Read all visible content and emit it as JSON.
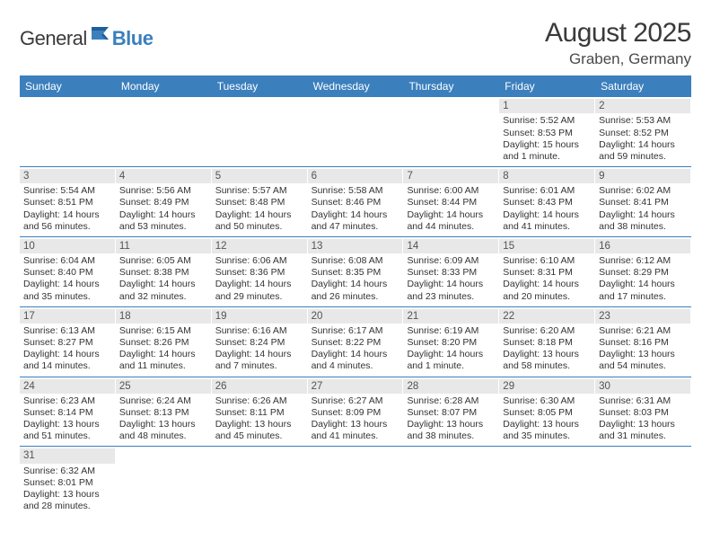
{
  "brand": {
    "name_part1": "General",
    "name_part2": "Blue"
  },
  "header": {
    "month_title": "August 2025",
    "location": "Graben, Germany"
  },
  "colors": {
    "header_bg": "#3b7fbd",
    "daynum_bg": "#e8e8e8",
    "row_border": "#3b7fbd",
    "text": "#333333",
    "white": "#ffffff"
  },
  "day_names": [
    "Sunday",
    "Monday",
    "Tuesday",
    "Wednesday",
    "Thursday",
    "Friday",
    "Saturday"
  ],
  "weeks": [
    [
      {
        "day": "",
        "sunrise": "",
        "sunset": "",
        "daylight": ""
      },
      {
        "day": "",
        "sunrise": "",
        "sunset": "",
        "daylight": ""
      },
      {
        "day": "",
        "sunrise": "",
        "sunset": "",
        "daylight": ""
      },
      {
        "day": "",
        "sunrise": "",
        "sunset": "",
        "daylight": ""
      },
      {
        "day": "",
        "sunrise": "",
        "sunset": "",
        "daylight": ""
      },
      {
        "day": "1",
        "sunrise": "Sunrise: 5:52 AM",
        "sunset": "Sunset: 8:53 PM",
        "daylight": "Daylight: 15 hours and 1 minute."
      },
      {
        "day": "2",
        "sunrise": "Sunrise: 5:53 AM",
        "sunset": "Sunset: 8:52 PM",
        "daylight": "Daylight: 14 hours and 59 minutes."
      }
    ],
    [
      {
        "day": "3",
        "sunrise": "Sunrise: 5:54 AM",
        "sunset": "Sunset: 8:51 PM",
        "daylight": "Daylight: 14 hours and 56 minutes."
      },
      {
        "day": "4",
        "sunrise": "Sunrise: 5:56 AM",
        "sunset": "Sunset: 8:49 PM",
        "daylight": "Daylight: 14 hours and 53 minutes."
      },
      {
        "day": "5",
        "sunrise": "Sunrise: 5:57 AM",
        "sunset": "Sunset: 8:48 PM",
        "daylight": "Daylight: 14 hours and 50 minutes."
      },
      {
        "day": "6",
        "sunrise": "Sunrise: 5:58 AM",
        "sunset": "Sunset: 8:46 PM",
        "daylight": "Daylight: 14 hours and 47 minutes."
      },
      {
        "day": "7",
        "sunrise": "Sunrise: 6:00 AM",
        "sunset": "Sunset: 8:44 PM",
        "daylight": "Daylight: 14 hours and 44 minutes."
      },
      {
        "day": "8",
        "sunrise": "Sunrise: 6:01 AM",
        "sunset": "Sunset: 8:43 PM",
        "daylight": "Daylight: 14 hours and 41 minutes."
      },
      {
        "day": "9",
        "sunrise": "Sunrise: 6:02 AM",
        "sunset": "Sunset: 8:41 PM",
        "daylight": "Daylight: 14 hours and 38 minutes."
      }
    ],
    [
      {
        "day": "10",
        "sunrise": "Sunrise: 6:04 AM",
        "sunset": "Sunset: 8:40 PM",
        "daylight": "Daylight: 14 hours and 35 minutes."
      },
      {
        "day": "11",
        "sunrise": "Sunrise: 6:05 AM",
        "sunset": "Sunset: 8:38 PM",
        "daylight": "Daylight: 14 hours and 32 minutes."
      },
      {
        "day": "12",
        "sunrise": "Sunrise: 6:06 AM",
        "sunset": "Sunset: 8:36 PM",
        "daylight": "Daylight: 14 hours and 29 minutes."
      },
      {
        "day": "13",
        "sunrise": "Sunrise: 6:08 AM",
        "sunset": "Sunset: 8:35 PM",
        "daylight": "Daylight: 14 hours and 26 minutes."
      },
      {
        "day": "14",
        "sunrise": "Sunrise: 6:09 AM",
        "sunset": "Sunset: 8:33 PM",
        "daylight": "Daylight: 14 hours and 23 minutes."
      },
      {
        "day": "15",
        "sunrise": "Sunrise: 6:10 AM",
        "sunset": "Sunset: 8:31 PM",
        "daylight": "Daylight: 14 hours and 20 minutes."
      },
      {
        "day": "16",
        "sunrise": "Sunrise: 6:12 AM",
        "sunset": "Sunset: 8:29 PM",
        "daylight": "Daylight: 14 hours and 17 minutes."
      }
    ],
    [
      {
        "day": "17",
        "sunrise": "Sunrise: 6:13 AM",
        "sunset": "Sunset: 8:27 PM",
        "daylight": "Daylight: 14 hours and 14 minutes."
      },
      {
        "day": "18",
        "sunrise": "Sunrise: 6:15 AM",
        "sunset": "Sunset: 8:26 PM",
        "daylight": "Daylight: 14 hours and 11 minutes."
      },
      {
        "day": "19",
        "sunrise": "Sunrise: 6:16 AM",
        "sunset": "Sunset: 8:24 PM",
        "daylight": "Daylight: 14 hours and 7 minutes."
      },
      {
        "day": "20",
        "sunrise": "Sunrise: 6:17 AM",
        "sunset": "Sunset: 8:22 PM",
        "daylight": "Daylight: 14 hours and 4 minutes."
      },
      {
        "day": "21",
        "sunrise": "Sunrise: 6:19 AM",
        "sunset": "Sunset: 8:20 PM",
        "daylight": "Daylight: 14 hours and 1 minute."
      },
      {
        "day": "22",
        "sunrise": "Sunrise: 6:20 AM",
        "sunset": "Sunset: 8:18 PM",
        "daylight": "Daylight: 13 hours and 58 minutes."
      },
      {
        "day": "23",
        "sunrise": "Sunrise: 6:21 AM",
        "sunset": "Sunset: 8:16 PM",
        "daylight": "Daylight: 13 hours and 54 minutes."
      }
    ],
    [
      {
        "day": "24",
        "sunrise": "Sunrise: 6:23 AM",
        "sunset": "Sunset: 8:14 PM",
        "daylight": "Daylight: 13 hours and 51 minutes."
      },
      {
        "day": "25",
        "sunrise": "Sunrise: 6:24 AM",
        "sunset": "Sunset: 8:13 PM",
        "daylight": "Daylight: 13 hours and 48 minutes."
      },
      {
        "day": "26",
        "sunrise": "Sunrise: 6:26 AM",
        "sunset": "Sunset: 8:11 PM",
        "daylight": "Daylight: 13 hours and 45 minutes."
      },
      {
        "day": "27",
        "sunrise": "Sunrise: 6:27 AM",
        "sunset": "Sunset: 8:09 PM",
        "daylight": "Daylight: 13 hours and 41 minutes."
      },
      {
        "day": "28",
        "sunrise": "Sunrise: 6:28 AM",
        "sunset": "Sunset: 8:07 PM",
        "daylight": "Daylight: 13 hours and 38 minutes."
      },
      {
        "day": "29",
        "sunrise": "Sunrise: 6:30 AM",
        "sunset": "Sunset: 8:05 PM",
        "daylight": "Daylight: 13 hours and 35 minutes."
      },
      {
        "day": "30",
        "sunrise": "Sunrise: 6:31 AM",
        "sunset": "Sunset: 8:03 PM",
        "daylight": "Daylight: 13 hours and 31 minutes."
      }
    ],
    [
      {
        "day": "31",
        "sunrise": "Sunrise: 6:32 AM",
        "sunset": "Sunset: 8:01 PM",
        "daylight": "Daylight: 13 hours and 28 minutes."
      },
      {
        "day": "",
        "sunrise": "",
        "sunset": "",
        "daylight": ""
      },
      {
        "day": "",
        "sunrise": "",
        "sunset": "",
        "daylight": ""
      },
      {
        "day": "",
        "sunrise": "",
        "sunset": "",
        "daylight": ""
      },
      {
        "day": "",
        "sunrise": "",
        "sunset": "",
        "daylight": ""
      },
      {
        "day": "",
        "sunrise": "",
        "sunset": "",
        "daylight": ""
      },
      {
        "day": "",
        "sunrise": "",
        "sunset": "",
        "daylight": ""
      }
    ]
  ]
}
